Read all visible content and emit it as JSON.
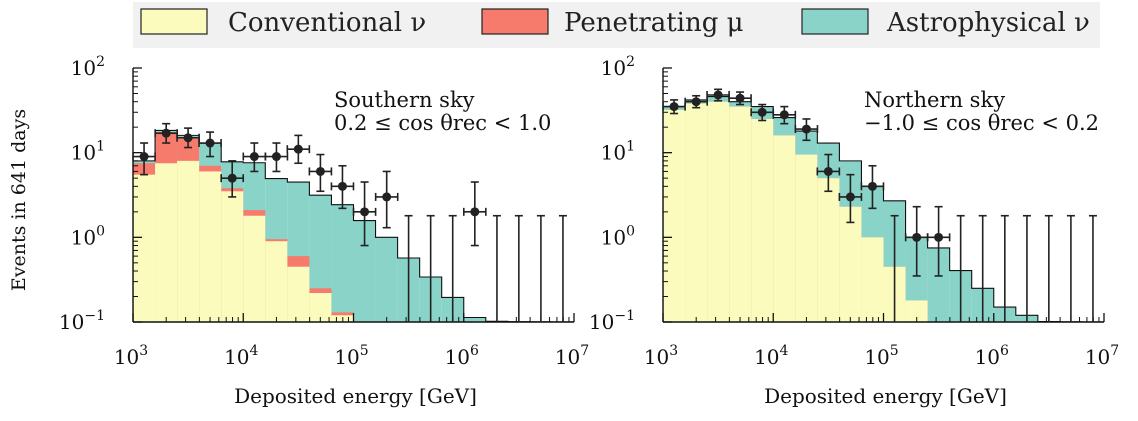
{
  "legend": {
    "items": [
      {
        "label": "Conventional ν",
        "color": "#fbfbbd"
      },
      {
        "label": "Penetrating μ",
        "color": "#f77b6c"
      },
      {
        "label": "Astrophysical ν",
        "color": "#89d3c8"
      }
    ]
  },
  "shared": {
    "ylabel": "Events in 641 days",
    "xlabel": "Deposited energy [GeV]",
    "x_ticks": [
      {
        "base": "10",
        "exp": "3"
      },
      {
        "base": "10",
        "exp": "4"
      },
      {
        "base": "10",
        "exp": "5"
      },
      {
        "base": "10",
        "exp": "6"
      },
      {
        "base": "10",
        "exp": "7"
      }
    ],
    "y_ticks": [
      {
        "base": "10",
        "exp": "2"
      },
      {
        "base": "10",
        "exp": "1"
      },
      {
        "base": "10",
        "exp": "0"
      },
      {
        "base": "10",
        "exp": "−1"
      }
    ]
  },
  "chart_data": [
    {
      "type": "area",
      "panel": "left",
      "title": "Southern sky",
      "subtitle": "0.2 ≤ cos θrec < 1.0",
      "xscale": "log",
      "yscale": "log",
      "xlim": [
        1000,
        10000000
      ],
      "ylim": [
        0.1,
        100
      ],
      "bin_edges_log10": [
        3.0,
        3.2,
        3.4,
        3.6,
        3.8,
        4.0,
        4.2,
        4.4,
        4.6,
        4.8,
        5.0,
        5.2,
        5.4,
        5.6,
        5.8,
        6.0,
        6.2,
        6.4,
        6.6,
        6.8,
        7.0
      ],
      "stack": [
        {
          "name": "Conventional ν",
          "values": [
            5.5,
            7.5,
            8.0,
            6.0,
            3.5,
            1.8,
            0.9,
            0.45,
            0.22,
            0.12,
            0.08,
            0.05,
            0.02,
            0.01,
            0.005,
            0.003,
            0.002,
            0.001,
            0.0005,
            0.0002
          ]
        },
        {
          "name": "Penetrating μ",
          "values": [
            2.0,
            10.0,
            7.0,
            1.0,
            0.3,
            0.3,
            0.05,
            0.15,
            0.03,
            0.01,
            0.0,
            0.0,
            0.0,
            0.0,
            0.0,
            0.0,
            0.0,
            0.0,
            0.0,
            0.0
          ]
        },
        {
          "name": "Astrophysical ν",
          "values": [
            0.5,
            0.8,
            1.0,
            6.0,
            4.0,
            5.5,
            4.0,
            3.9,
            2.9,
            2.3,
            1.5,
            0.95,
            0.55,
            0.33,
            0.19,
            0.11,
            0.1,
            0.1,
            0.1,
            0.1
          ]
        }
      ],
      "points": {
        "name": "Data",
        "x": [
          1260,
          2000,
          3160,
          5000,
          7940,
          12600,
          20000,
          31600,
          50100,
          79400,
          126000,
          200000,
          1260000
        ],
        "y": [
          9,
          17,
          15,
          13,
          5,
          9,
          9,
          11,
          6,
          4,
          2,
          3,
          2
        ],
        "y_low": [
          5.5,
          13,
          11.5,
          9,
          3,
          6,
          6,
          7.5,
          3.5,
          2.2,
          0.8,
          1.3,
          0.8
        ],
        "y_high": [
          13,
          22,
          19.5,
          17.5,
          8,
          13,
          13,
          16,
          9.5,
          7,
          4.5,
          6,
          4.5
        ]
      },
      "upper_limit_x": [
        316000,
        501000,
        794000,
        2000000,
        3160000,
        5010000,
        7940000
      ],
      "upper_limit_top": 1.8
    },
    {
      "type": "area",
      "panel": "right",
      "title": "Northern sky",
      "subtitle": "−1.0 ≤ cos θrec < 0.2",
      "xscale": "log",
      "yscale": "log",
      "xlim": [
        1000,
        10000000
      ],
      "ylim": [
        0.1,
        100
      ],
      "bin_edges_log10": [
        3.0,
        3.2,
        3.4,
        3.6,
        3.8,
        4.0,
        4.2,
        4.4,
        4.6,
        4.8,
        5.0,
        5.2,
        5.4,
        5.6,
        5.8,
        6.0,
        6.2,
        6.4,
        6.6,
        6.8,
        7.0
      ],
      "stack": [
        {
          "name": "Conventional ν",
          "values": [
            32,
            38,
            40,
            35,
            25,
            16,
            9.5,
            5.0,
            2.3,
            1.0,
            0.45,
            0.18,
            0.08,
            0.035,
            0.015,
            0.006,
            0.003,
            0.0012,
            0.0005,
            0.0002
          ]
        },
        {
          "name": "Penetrating μ",
          "values": [
            0,
            0,
            0,
            0,
            0,
            0,
            0,
            0,
            0,
            0,
            0,
            0,
            0,
            0,
            0,
            0,
            0,
            0,
            0,
            0
          ]
        },
        {
          "name": "Astrophysical ν",
          "values": [
            3,
            4,
            6,
            5,
            10,
            10,
            8.5,
            8.0,
            5.7,
            3.0,
            2.25,
            0.82,
            0.67,
            0.37,
            0.235,
            0.144,
            0.117,
            0.1,
            0.1,
            0.1
          ]
        }
      ],
      "points": {
        "name": "Data",
        "x": [
          1260,
          2000,
          3160,
          5000,
          7940,
          12600,
          20000,
          31600,
          50100,
          79400,
          200000,
          316000
        ],
        "y": [
          35,
          40,
          48,
          44,
          30,
          28,
          19,
          6,
          3,
          4,
          1,
          1
        ],
        "y_low": [
          29,
          34,
          41,
          37,
          24,
          22,
          14,
          3.5,
          1.5,
          2.2,
          0.35,
          0.35
        ],
        "y_high": [
          42,
          47,
          56,
          52,
          37,
          35,
          25,
          9.5,
          5.5,
          7,
          2.3,
          2.3
        ]
      },
      "upper_limit_x": [
        126000,
        501000,
        794000,
        1260000,
        2000000,
        3160000,
        5010000,
        7940000
      ],
      "upper_limit_top": 1.8
    }
  ]
}
